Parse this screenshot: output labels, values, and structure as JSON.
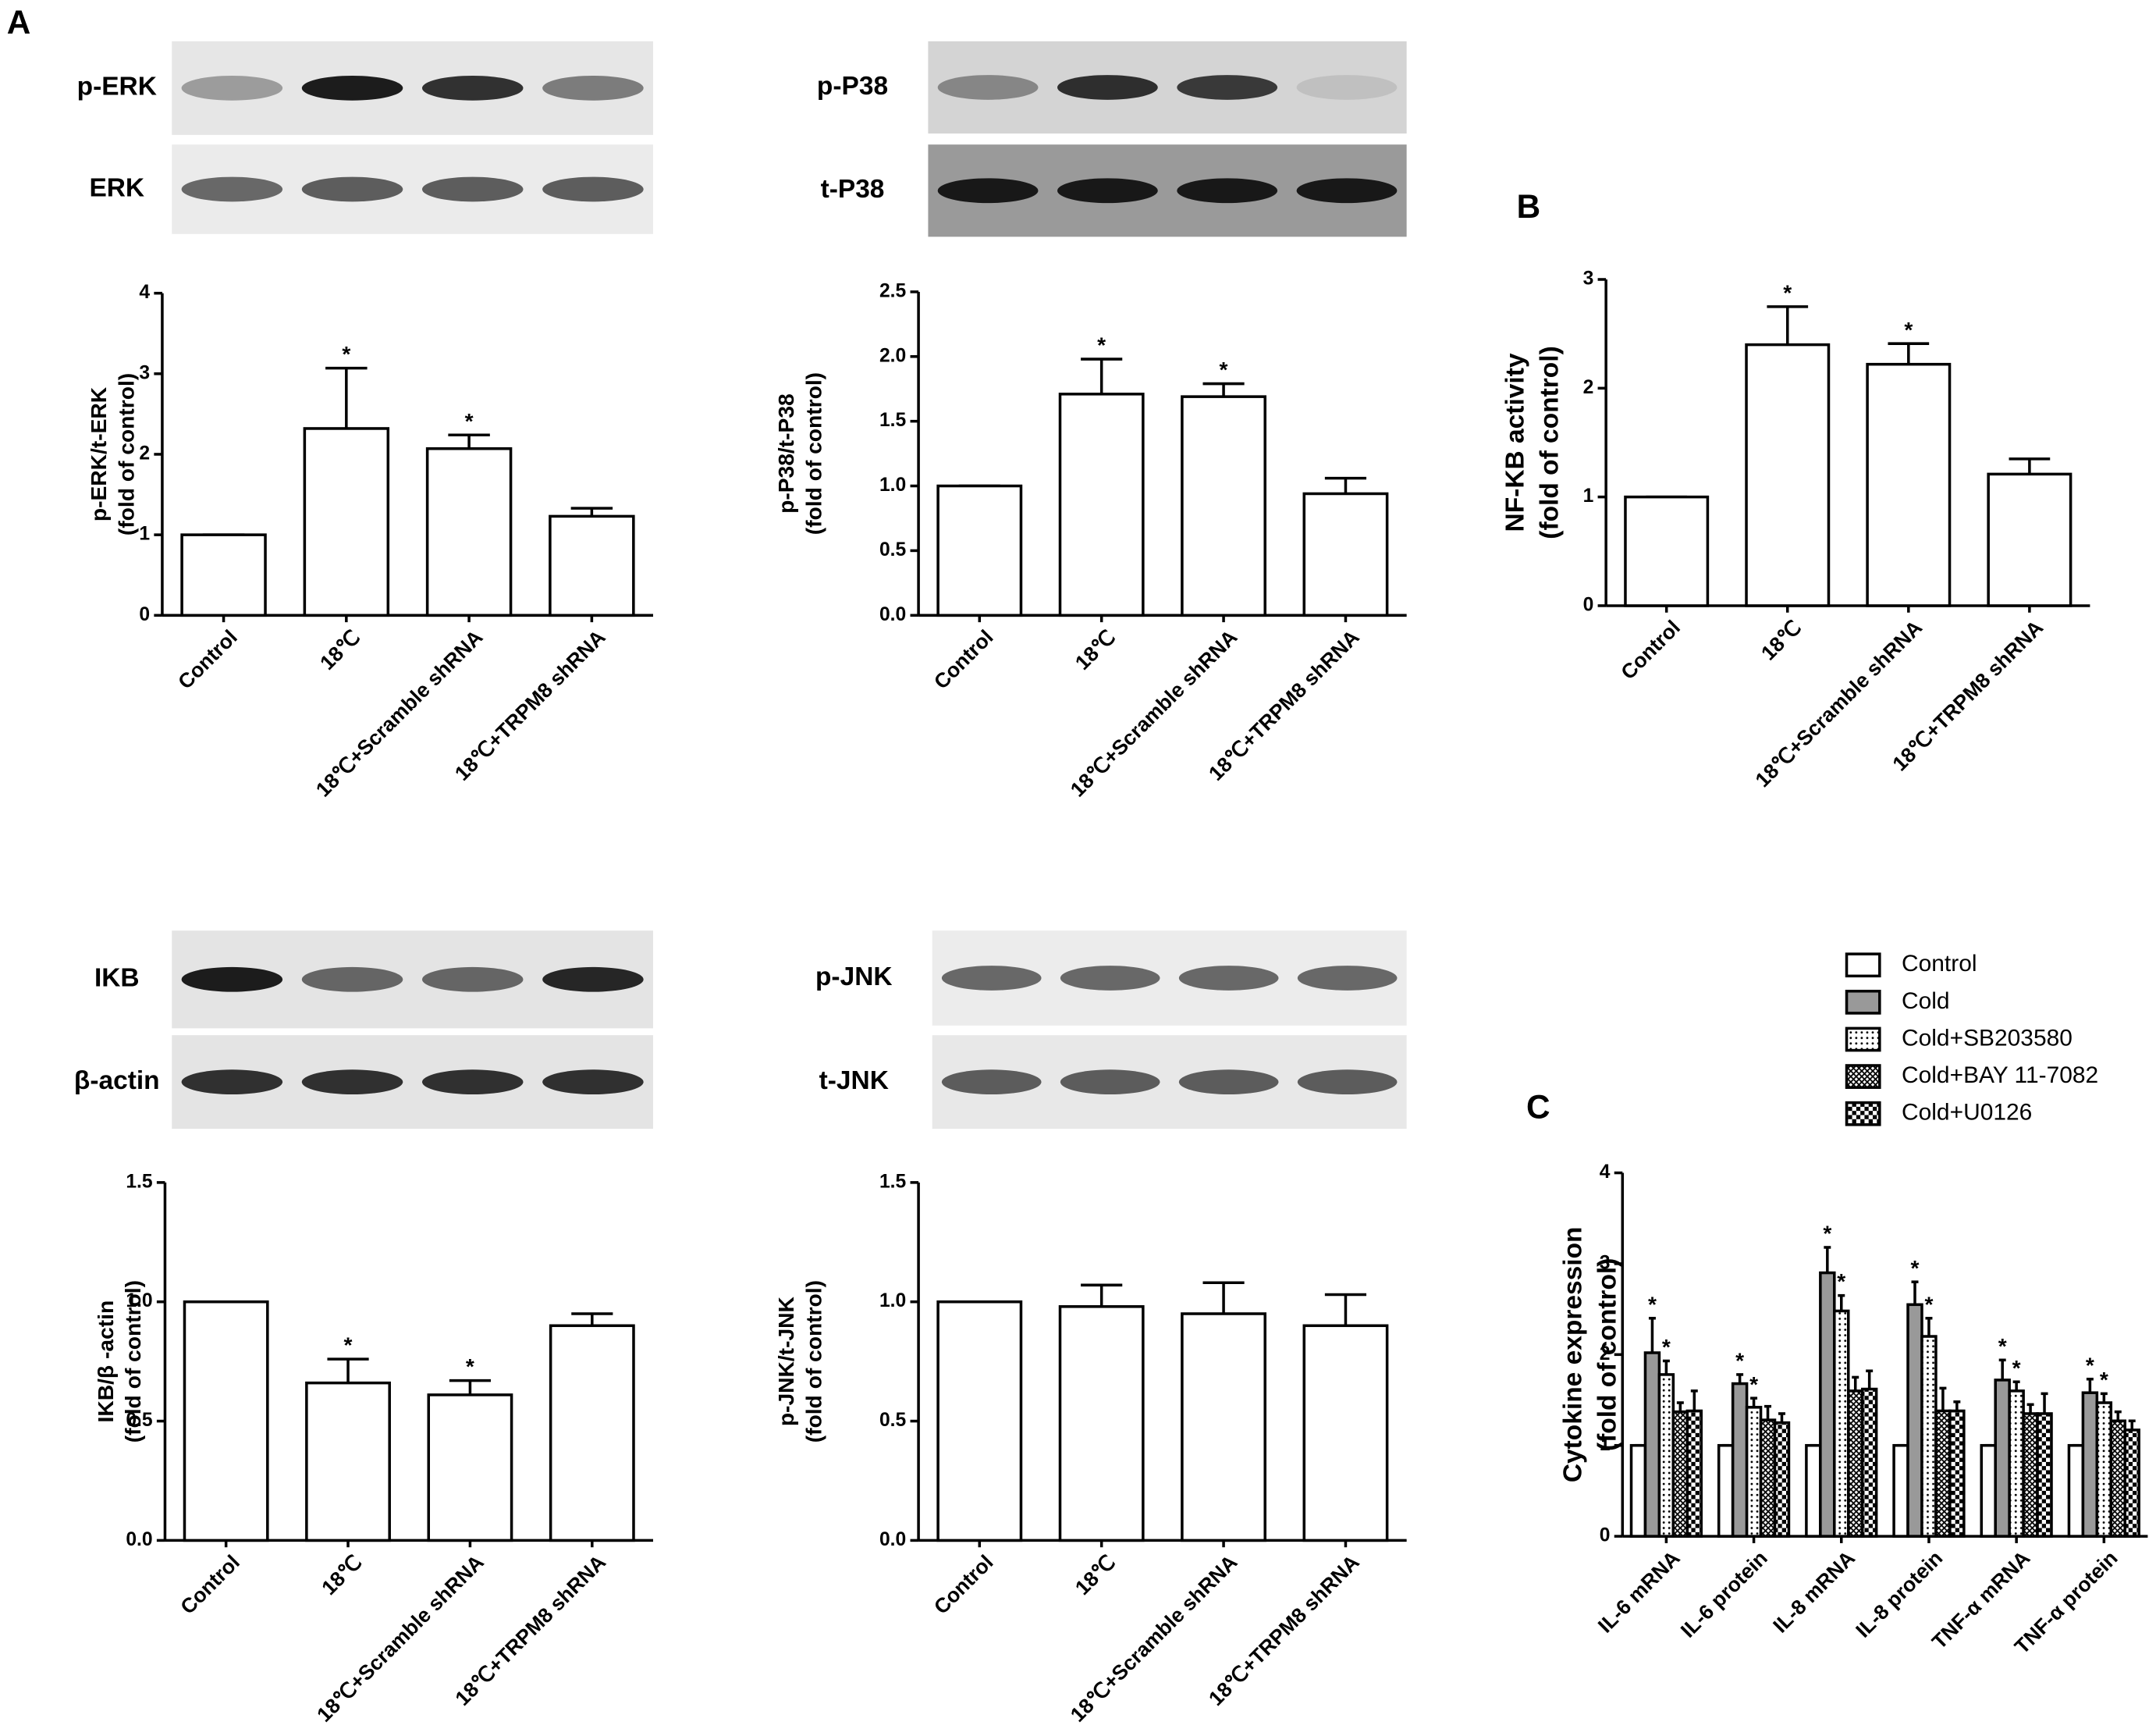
{
  "panel_labels": [
    "A",
    "B",
    "C"
  ],
  "blots": [
    {
      "labels": [
        "p-ERK",
        "ERK"
      ]
    },
    {
      "labels": [
        "p-P38",
        "t-P38"
      ]
    },
    {
      "labels": [
        "IKB",
        "β-actin"
      ]
    },
    {
      "labels": [
        "p-JNK",
        "t-JNK"
      ]
    }
  ],
  "chart_data": [
    {
      "type": "bar",
      "ylabel": [
        "p-ERK/t-ERK",
        "(fold of control)"
      ],
      "categories": [
        "Control",
        "18℃",
        "18℃+Scramble shRNA",
        "18℃+TRPM8 shRNA"
      ],
      "values": [
        1,
        2.32,
        2.07,
        1.23
      ],
      "errors": [
        0,
        0.75,
        0.17,
        0.1
      ],
      "markers": [
        null,
        "*",
        "*",
        null
      ],
      "color": "#ffffff",
      "ylim": [
        0,
        4
      ],
      "yticks": [
        0,
        1,
        2,
        3,
        4
      ]
    },
    {
      "type": "bar",
      "ylabel": [
        "p-P38/t-P38",
        "(fold of control)"
      ],
      "categories": [
        "Control",
        "18℃",
        "18℃+Scramble shRNA",
        "18℃+TRPM8 shRNA"
      ],
      "values": [
        1,
        1.71,
        1.69,
        0.94
      ],
      "errors": [
        0,
        0.27,
        0.1,
        0.12
      ],
      "markers": [
        null,
        "*",
        "*",
        null
      ],
      "color": "#ffffff",
      "ylim": [
        0,
        2.5
      ],
      "yticks": [
        {
          "value": 0,
          "label": "0.0"
        },
        0.5,
        {
          "value": 1,
          "label": "1.0"
        },
        1.5,
        {
          "value": 2,
          "label": "2.0"
        },
        2.5
      ]
    },
    {
      "type": "bar",
      "ylabel": [
        "NF-KB activity",
        "(fold of control)"
      ],
      "categories": [
        "Control",
        "18℃",
        "18℃+Scramble shRNA",
        "18℃+TRPM8 shRNA"
      ],
      "values": [
        1,
        2.4,
        2.22,
        1.21
      ],
      "errors": [
        0,
        0.35,
        0.19,
        0.14
      ],
      "markers": [
        null,
        "*",
        "*",
        null
      ],
      "color": "#ffffff",
      "ylim": [
        0,
        3
      ],
      "yticks": [
        0,
        1,
        2,
        3
      ]
    },
    {
      "type": "bar",
      "ylabel": [
        "IKB/β -actin",
        "(fold of control)"
      ],
      "categories": [
        "Control",
        "18℃",
        "18℃+Scramble shRNA",
        "18℃+TRPM8 shRNA"
      ],
      "values": [
        1,
        0.66,
        0.61,
        0.9
      ],
      "errors": [
        0,
        0.1,
        0.06,
        0.05
      ],
      "markers": [
        null,
        "*",
        "*",
        null
      ],
      "color": "#ffffff",
      "ylim": [
        0,
        1.5
      ],
      "yticks": [
        {
          "value": 0,
          "label": "0.0"
        },
        0.5,
        {
          "value": 1,
          "label": "1.0"
        },
        1.5
      ]
    },
    {
      "type": "bar",
      "ylabel": [
        "p-JNK/t-JNK",
        "(fold of control)"
      ],
      "categories": [
        "Control",
        "18℃",
        "18℃+Scramble shRNA",
        "18℃+TRPM8 shRNA"
      ],
      "values": [
        1,
        0.98,
        0.95,
        0.9
      ],
      "errors": [
        0,
        0.09,
        0.13,
        0.13
      ],
      "color": "#ffffff",
      "ylim": [
        0,
        1.5
      ],
      "yticks": [
        {
          "value": 0,
          "label": "0.0"
        },
        0.5,
        {
          "value": 1,
          "label": "1.0"
        },
        1.5
      ]
    },
    {
      "type": "grouped_bar",
      "ylabel": [
        "Cytokine expression",
        "(fold of control)"
      ],
      "categories": [
        "IL-6 mRNA",
        "IL-6 protein",
        "IL-8 mRNA",
        "IL-8 protein",
        "TNF-α mRNA",
        "TNF-α protein"
      ],
      "series": [
        {
          "name": "Control",
          "color": "#ffffff",
          "values": [
            1,
            1,
            1,
            1,
            1,
            1
          ],
          "errors": [
            0,
            0,
            0,
            0,
            0,
            0
          ]
        },
        {
          "name": "Cold",
          "color": "#999999",
          "values": [
            2.02,
            1.68,
            2.9,
            2.55,
            1.72,
            1.58
          ],
          "errors": [
            0.38,
            0.1,
            0.28,
            0.25,
            0.22,
            0.15
          ],
          "markers": [
            "*",
            "*",
            "*",
            "*",
            "*",
            "*"
          ]
        },
        {
          "name": "Cold+SB203580",
          "color": "#ffffff",
          "pattern": "dots",
          "values": [
            1.78,
            1.42,
            2.48,
            2.2,
            1.6,
            1.47
          ],
          "errors": [
            0.15,
            0.1,
            0.17,
            0.2,
            0.1,
            0.1
          ],
          "markers": [
            "*",
            "*",
            "*",
            "*",
            "*",
            "*"
          ]
        },
        {
          "name": "Cold+BAY 11-7082",
          "color": "#ffffff",
          "pattern": "crosshatch",
          "values": [
            1.37,
            1.28,
            1.6,
            1.38,
            1.35,
            1.27
          ],
          "errors": [
            0.1,
            0.15,
            0.15,
            0.25,
            0.1,
            0.1
          ]
        },
        {
          "name": "Cold+U0126",
          "color": "#ffffff",
          "pattern": "checker",
          "values": [
            1.38,
            1.25,
            1.62,
            1.38,
            1.35,
            1.17
          ],
          "errors": [
            0.22,
            0.1,
            0.2,
            0.1,
            0.22,
            0.1
          ]
        }
      ],
      "ylim": [
        0,
        4
      ],
      "yticks": [
        0,
        1,
        2,
        3,
        4
      ],
      "legend": "top"
    }
  ]
}
